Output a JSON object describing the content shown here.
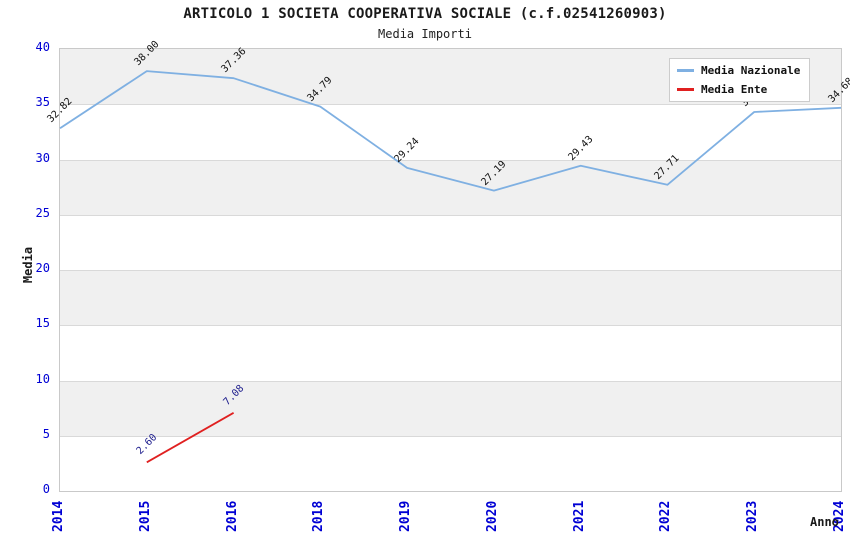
{
  "header": {
    "title": "ARTICOLO 1 SOCIETA COOPERATIVA SOCIALE (c.f.02541260903)",
    "subtitle": "Media Importi"
  },
  "axes": {
    "y_title": "Media",
    "x_title": "Anno",
    "y_tick_labels": [
      "0",
      "5",
      "10",
      "15",
      "20",
      "25",
      "30",
      "35",
      "40"
    ],
    "x_tick_labels": [
      "2014",
      "2015",
      "2016",
      "2018",
      "2019",
      "2020",
      "2021",
      "2022",
      "2023",
      "2024"
    ],
    "tick_color": "#0000d4"
  },
  "legend": {
    "entries": [
      {
        "label": "Media Nazionale",
        "color": "#7fb0e2"
      },
      {
        "label": "Media Ente",
        "color": "#e02020"
      }
    ]
  },
  "chart_data": {
    "type": "line",
    "title": "ARTICOLO 1 SOCIETA COOPERATIVA SOCIALE (c.f.02541260903)",
    "subtitle": "Media Importi",
    "xlabel": "Anno",
    "ylabel": "Media",
    "ylim": [
      0,
      40
    ],
    "ytick_step": 5,
    "grid": true,
    "alternating_bands": true,
    "legend_position": "top-right",
    "categories": [
      "2014",
      "2015",
      "2016",
      "2018",
      "2019",
      "2020",
      "2021",
      "2022",
      "2023",
      "2024"
    ],
    "series": [
      {
        "name": "Media Nazionale",
        "color": "#7fb0e2",
        "label_color": "#111111",
        "values": [
          32.82,
          38.0,
          37.36,
          34.79,
          29.24,
          27.19,
          29.43,
          27.71,
          34.3,
          34.68
        ],
        "point_labels": [
          "32.82",
          "38.00",
          "37.36",
          "34.79",
          "29.24",
          "27.19",
          "29.43",
          "27.71",
          "34.30",
          "34.68"
        ]
      },
      {
        "name": "Media Ente",
        "color": "#e02020",
        "label_color": "#20208e",
        "values": [
          null,
          2.6,
          7.08,
          null,
          null,
          null,
          null,
          null,
          null,
          null
        ],
        "point_labels": [
          "",
          "2.60",
          "7.08",
          "",
          "",
          "",
          "",
          "",
          "",
          ""
        ]
      }
    ]
  },
  "colors": {
    "band_gray": "#f0f0f0",
    "band_white": "#ffffff",
    "gridline": "#d9d9d9",
    "plot_border": "#c9c9c9",
    "legend_border": "#cccccc"
  }
}
